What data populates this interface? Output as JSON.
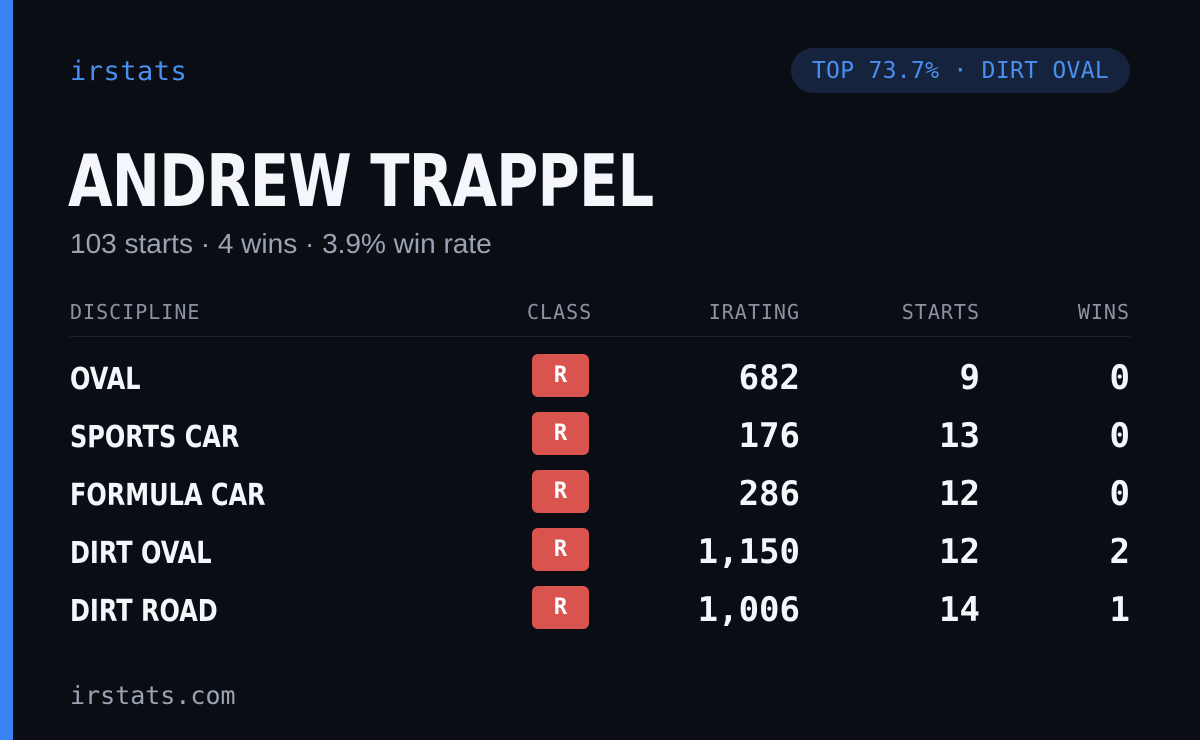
{
  "brand": "irstats",
  "rank_pill": "TOP 73.7% · DIRT OVAL",
  "driver": {
    "name": "ANDREW TRAPPEL",
    "summary": "103 starts · 4 wins · 3.9% win rate"
  },
  "table": {
    "headers": {
      "discipline": "DISCIPLINE",
      "class": "CLASS",
      "irating": "IRATING",
      "starts": "STARTS",
      "wins": "WINS"
    },
    "rows": [
      {
        "discipline": "OVAL",
        "class": "R",
        "irating": "682",
        "starts": "9",
        "wins": "0"
      },
      {
        "discipline": "SPORTS CAR",
        "class": "R",
        "irating": "176",
        "starts": "13",
        "wins": "0"
      },
      {
        "discipline": "FORMULA CAR",
        "class": "R",
        "irating": "286",
        "starts": "12",
        "wins": "0"
      },
      {
        "discipline": "DIRT OVAL",
        "class": "R",
        "irating": "1,150",
        "starts": "12",
        "wins": "2"
      },
      {
        "discipline": "DIRT ROAD",
        "class": "R",
        "irating": "1,006",
        "starts": "14",
        "wins": "1"
      }
    ]
  },
  "footer": "irstats.com",
  "colors": {
    "background": "#0a0d14",
    "accent": "#3b82f6",
    "class_r_badge": "#d9534f",
    "text_primary": "#f4f6fb",
    "text_muted": "#9aa3b2"
  }
}
